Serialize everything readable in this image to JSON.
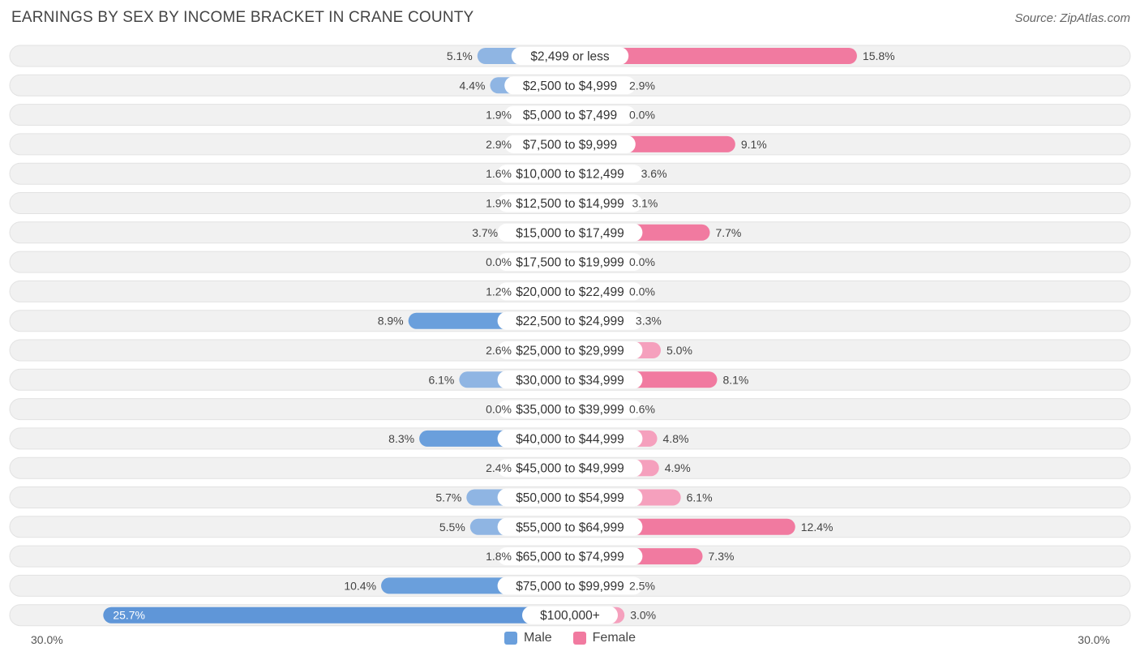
{
  "title": "EARNINGS BY SEX BY INCOME BRACKET IN CRANE COUNTY",
  "source": "Source: ZipAtlas.com",
  "axis": {
    "left_label": "30.0%",
    "right_label": "30.0%"
  },
  "legend": {
    "male_label": "Male",
    "female_label": "Female"
  },
  "colors": {
    "male": "#8fb5e3",
    "male_strong": "#6a9fdc",
    "female": "#f5a0bd",
    "female_strong": "#f17aa0",
    "row_bg": "#f1f1f1",
    "row_border": "#e2e2e2"
  },
  "chart_data": {
    "type": "bar",
    "orientation": "horizontal-diverging",
    "title": "EARNINGS BY SEX BY INCOME BRACKET IN CRANE COUNTY",
    "xlim": [
      -30,
      30
    ],
    "unit": "%",
    "categories": [
      "$2,499 or less",
      "$2,500 to $4,999",
      "$5,000 to $7,499",
      "$7,500 to $9,999",
      "$10,000 to $12,499",
      "$12,500 to $14,999",
      "$15,000 to $17,499",
      "$17,500 to $19,999",
      "$20,000 to $22,499",
      "$22,500 to $24,999",
      "$25,000 to $29,999",
      "$30,000 to $34,999",
      "$35,000 to $39,999",
      "$40,000 to $44,999",
      "$45,000 to $49,999",
      "$50,000 to $54,999",
      "$55,000 to $64,999",
      "$65,000 to $74,999",
      "$75,000 to $99,999",
      "$100,000+"
    ],
    "series": [
      {
        "name": "Male",
        "values": [
          5.1,
          4.4,
          1.9,
          2.9,
          1.6,
          1.9,
          3.7,
          0.0,
          1.2,
          8.9,
          2.6,
          6.1,
          0.0,
          8.3,
          2.4,
          5.7,
          5.5,
          1.8,
          10.4,
          25.7
        ]
      },
      {
        "name": "Female",
        "values": [
          15.8,
          2.9,
          0.0,
          9.1,
          3.6,
          3.1,
          7.7,
          0.0,
          0.0,
          3.3,
          5.0,
          8.1,
          0.6,
          4.8,
          4.9,
          6.1,
          12.4,
          7.3,
          2.5,
          3.0
        ]
      }
    ],
    "labels": {
      "male": [
        "5.1%",
        "4.4%",
        "1.9%",
        "2.9%",
        "1.6%",
        "1.9%",
        "3.7%",
        "0.0%",
        "1.2%",
        "8.9%",
        "2.6%",
        "6.1%",
        "0.0%",
        "8.3%",
        "2.4%",
        "5.7%",
        "5.5%",
        "1.8%",
        "10.4%",
        "25.7%"
      ],
      "female": [
        "15.8%",
        "2.9%",
        "0.0%",
        "9.1%",
        "3.6%",
        "3.1%",
        "7.7%",
        "0.0%",
        "0.0%",
        "3.3%",
        "5.0%",
        "8.1%",
        "0.6%",
        "4.8%",
        "4.9%",
        "6.1%",
        "12.4%",
        "7.3%",
        "2.5%",
        "3.0%"
      ]
    }
  }
}
